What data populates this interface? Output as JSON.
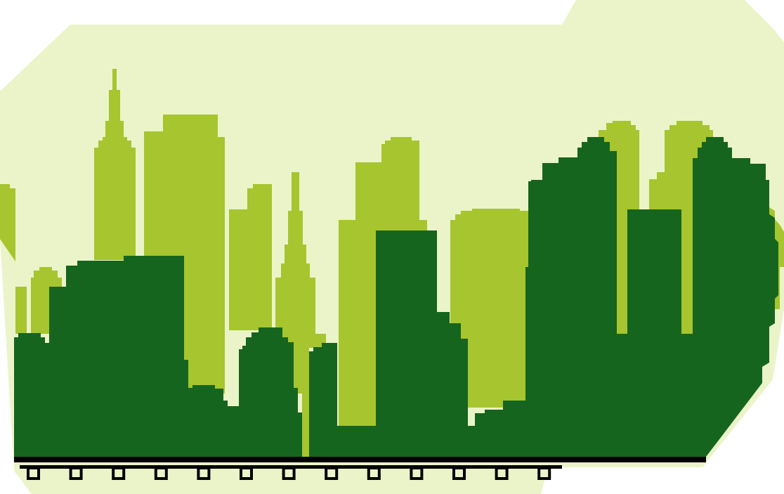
{
  "colors": {
    "background": "#ffffff",
    "sky": "#ebf4c8",
    "back_buildings": "#a6c52e",
    "front_buildings": "#16651e",
    "rail": "#000000"
  },
  "scene": {
    "subject": "city-skyline-silhouette",
    "layers": [
      "sky-backdrop",
      "back-skyline",
      "front-skyline",
      "railway-track"
    ]
  }
}
